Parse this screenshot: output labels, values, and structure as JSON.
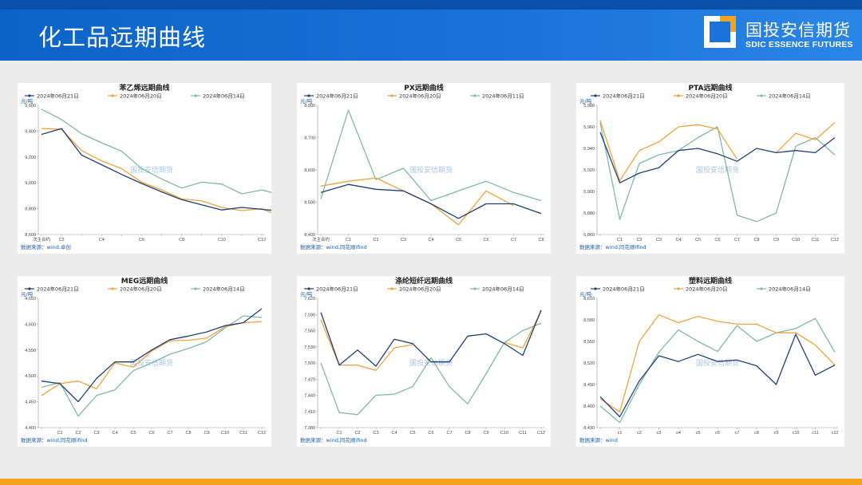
{
  "header": {
    "title": "化工品远期曲线",
    "logo_cn": "国投安信期货",
    "logo_en": "SDIC ESSENCE FUTURES"
  },
  "colors": {
    "series": [
      "#1f3f7a",
      "#f2a33a",
      "#7fb8ab"
    ],
    "header_blue": "#0c63c7",
    "accent_orange": "#f4a31c"
  },
  "watermark": "国投安信期货",
  "chart_data": [
    {
      "type": "line",
      "title": "苯乙烯远期曲线",
      "unit": "元/吨",
      "source": "数据来源：wind,卓创",
      "ylim": [
        8600,
        9600
      ],
      "yticks": [
        "8,600",
        "8,800",
        "9,000",
        "9,200",
        "9,400",
        "9,600"
      ],
      "xticks": [
        "",
        "C2",
        "",
        "C4",
        "",
        "C6",
        "",
        "C8",
        "",
        "C10",
        "",
        "C12"
      ],
      "first_tick": "次主合约",
      "series": [
        {
          "name": "2024年06月21日",
          "values": [
            9375,
            9420,
            9215,
            9140,
            9065,
            8995,
            8930,
            8870,
            8830,
            8790,
            8810,
            8795,
            8780
          ]
        },
        {
          "name": "2024年06月20日",
          "values": [
            9420,
            9415,
            9250,
            9170,
            9110,
            9005,
            8945,
            8875,
            8860,
            8810,
            8785,
            8800,
            8735
          ]
        },
        {
          "name": "2024年06月14日",
          "values": [
            9570,
            9490,
            9380,
            9310,
            9245,
            9110,
            9030,
            8960,
            9005,
            8990,
            8915,
            8945,
            8905
          ]
        }
      ]
    },
    {
      "type": "line",
      "title": "PX远期曲线",
      "unit": "元/吨",
      "source": "数据来源：wind,同花顺ifind",
      "ylim": [
        8400,
        8800
      ],
      "yticks": [
        "8,400",
        "8,500",
        "8,600",
        "8,700",
        "8,800"
      ],
      "xticks": [
        "",
        "C1",
        "C2",
        "C3",
        "C4",
        "C5",
        "C6",
        "C7",
        "C8"
      ],
      "first_tick": "次主合约",
      "series": [
        {
          "name": "2024年06月21日",
          "values": [
            8530,
            8555,
            8540,
            8535,
            8495,
            8450,
            8495,
            8495,
            8465
          ]
        },
        {
          "name": "2024年06月20日",
          "values": [
            8550,
            8565,
            8575,
            8535,
            8495,
            8430,
            8535,
            8490,
            null
          ]
        },
        {
          "name": "2024年06月11日",
          "values": [
            8510,
            8785,
            8570,
            8605,
            8505,
            8535,
            8565,
            8530,
            8505
          ]
        }
      ]
    },
    {
      "type": "line",
      "title": "PTA远期曲线",
      "unit": "元/吨",
      "source": "数据来源：wind,同花顺ifind",
      "ylim": [
        5860,
        5980
      ],
      "yticks": [
        "5,860",
        "5,880",
        "5,900",
        "5,920",
        "5,940",
        "5,960",
        "5,980"
      ],
      "xticks": [
        "",
        "C1",
        "C2",
        "C3",
        "C4",
        "C5",
        "C6",
        "C7",
        "C8",
        "C9",
        "C10",
        "C11",
        "C12"
      ],
      "first_tick": "",
      "series": [
        {
          "name": "2024年06月21日",
          "values": [
            5955,
            5908,
            5917,
            5922,
            5938,
            5940,
            5935,
            5928,
            5940,
            5936,
            5938,
            5936,
            5950
          ]
        },
        {
          "name": "2024年06月20日",
          "values": [
            5966,
            5910,
            5938,
            5946,
            5960,
            5962,
            5958,
            5930,
            null,
            5936,
            5954,
            5948,
            5964
          ]
        },
        {
          "name": "2024年06月14日",
          "values": [
            5964,
            5874,
            5926,
            5934,
            5938,
            5950,
            5960,
            5878,
            5872,
            5880,
            5942,
            5950,
            5934
          ]
        }
      ]
    },
    {
      "type": "line",
      "title": "MEG远期曲线",
      "unit": "元/吨",
      "source": "数据来源：wind,同花顺ifind",
      "ylim": [
        4400,
        4650
      ],
      "yticks": [
        "4,400",
        "4,450",
        "4,500",
        "4,550",
        "4,600",
        "4,650"
      ],
      "xticks": [
        "",
        "C1",
        "C2",
        "C3",
        "C4",
        "C5",
        "C6",
        "C7",
        "C8",
        "C9",
        "C10",
        "C11",
        "C12"
      ],
      "first_tick": "",
      "series": [
        {
          "name": "2024年06月21日",
          "values": [
            4490,
            4485,
            4450,
            4495,
            4527,
            4527,
            4550,
            4570,
            4577,
            4585,
            4597,
            4603,
            4630
          ]
        },
        {
          "name": "2024年06月20日",
          "values": [
            4462,
            4485,
            4490,
            4475,
            4525,
            4517,
            4548,
            4568,
            4569,
            4573,
            4595,
            4603,
            4605
          ]
        },
        {
          "name": "2024年06月14日",
          "values": [
            4478,
            4487,
            4422,
            4462,
            4473,
            4510,
            4525,
            4542,
            4553,
            4566,
            4593,
            4616,
            4613
          ]
        }
      ]
    },
    {
      "type": "line",
      "title": "涤纶短纤远期曲线",
      "unit": "元/吨",
      "source": "数据来源：wind,同花顺ifind",
      "ylim": [
        7380,
        7620
      ],
      "yticks": [
        "7,380",
        "7,410",
        "7,440",
        "7,470",
        "7,500",
        "7,530",
        "7,560",
        "7,590",
        "7,620"
      ],
      "xticks": [
        "",
        "C1",
        "C2",
        "C3",
        "C4",
        "C5",
        "C6",
        "C7",
        "C8",
        "C9",
        "C10",
        "C11",
        "C12"
      ],
      "first_tick": "",
      "series": [
        {
          "name": "2024年06月21日",
          "values": [
            7594,
            7496,
            7524,
            7494,
            7544,
            7536,
            7502,
            7502,
            7550,
            7554,
            7536,
            7514,
            7598
          ]
        },
        {
          "name": "2024年06月20日",
          "values": [
            7580,
            7496,
            7496,
            7486,
            7528,
            7534,
            null,
            null,
            null,
            null,
            7538,
            7528,
            7596
          ]
        },
        {
          "name": "2024年06月14日",
          "values": [
            7500,
            7408,
            7404,
            7440,
            7442,
            7456,
            7510,
            7456,
            7424,
            7480,
            7538,
            7560,
            7574
          ]
        }
      ]
    },
    {
      "type": "line",
      "title": "塑料远期曲线",
      "unit": "元/吨",
      "source": "数据来源：wind",
      "ylim": [
        8430,
        8610
      ],
      "yticks": [
        "8,430",
        "8,460",
        "8,490",
        "8,520",
        "8,550",
        "8,580",
        "8,610"
      ],
      "xticks": [
        "",
        "c1",
        "c2",
        "c3",
        "c4",
        "c5",
        "c6",
        "c7",
        "c8",
        "c9",
        "c10",
        "c11",
        "c12"
      ],
      "first_tick": "",
      "series": [
        {
          "name": "2024年06月21日",
          "values": [
            8473,
            8445,
            8495,
            8530,
            8522,
            8532,
            8522,
            8524,
            8516,
            8490,
            8560,
            8503,
            8517
          ]
        },
        {
          "name": "2024年06月20日",
          "values": [
            8470,
            8452,
            8550,
            8587,
            8576,
            8585,
            8578,
            8574,
            8574,
            8562,
            8562,
            8545,
            8517
          ]
        },
        {
          "name": "2024年06月14日",
          "values": [
            8460,
            8437,
            8490,
            8535,
            8566,
            8550,
            8536,
            8572,
            8550,
            8562,
            8568,
            8582,
            8535
          ]
        }
      ]
    }
  ]
}
